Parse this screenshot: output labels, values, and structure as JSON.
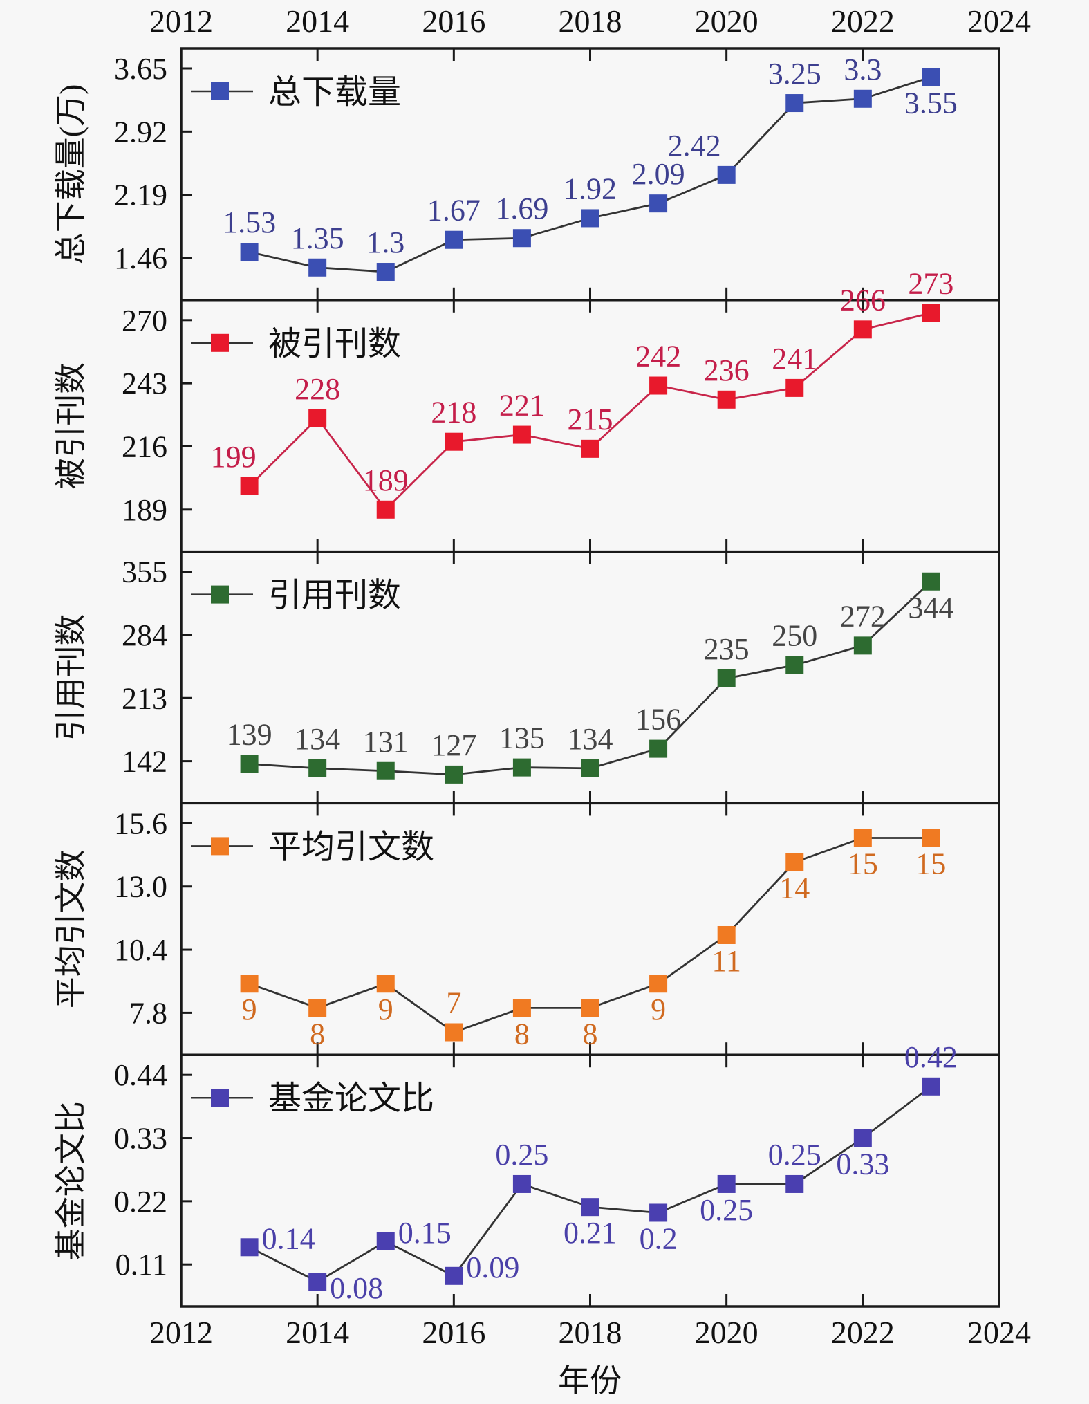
{
  "chart_data": {
    "type": "line",
    "layout": "stacked-panels",
    "x": [
      2013,
      2014,
      2015,
      2016,
      2017,
      2018,
      2019,
      2020,
      2021,
      2022,
      2023
    ],
    "x_ticks": [
      2012,
      2014,
      2016,
      2018,
      2020,
      2022,
      2024
    ],
    "xlim": [
      2012,
      2024
    ],
    "xlabel": "年份",
    "grid": false,
    "panels": [
      {
        "name": "总下载量",
        "ylabel": "总下载量(万)",
        "legend": "总下载量",
        "legend_position": "top-left",
        "color": "#3b4fb3",
        "label_color": "#3d3f8f",
        "y_ticks": [
          "1.46",
          "2.19",
          "2.92",
          "3.65"
        ],
        "ylim_ticks": [
          1.46,
          3.65
        ],
        "values": [
          1.53,
          1.35,
          1.3,
          1.67,
          1.69,
          1.92,
          2.09,
          2.42,
          3.25,
          3.3,
          3.55
        ],
        "labels": [
          "1.53",
          "1.35",
          "1.3",
          "1.67",
          "1.69",
          "1.92",
          "2.09",
          "2.42",
          "3.25",
          "3.3",
          "3.55"
        ],
        "label_pos": [
          "above",
          "above",
          "above",
          "above",
          "above",
          "above",
          "above",
          "above-left",
          "above",
          "above",
          "below"
        ]
      },
      {
        "name": "被引刊数",
        "ylabel": "被引刊数",
        "legend": "被引刊数",
        "legend_position": "top-left",
        "color": "#e8192c",
        "label_color": "#c41e4a",
        "y_ticks": [
          "189",
          "216",
          "243",
          "270"
        ],
        "ylim_ticks": [
          189,
          270
        ],
        "values": [
          199,
          228,
          189,
          218,
          221,
          215,
          242,
          236,
          241,
          266,
          273
        ],
        "labels": [
          "199",
          "228",
          "189",
          "218",
          "221",
          "215",
          "242",
          "236",
          "241",
          "266",
          "273"
        ],
        "label_pos": [
          "above-left",
          "above",
          "above",
          "above",
          "above",
          "above",
          "above",
          "above",
          "above",
          "above",
          "above"
        ]
      },
      {
        "name": "引用刊数",
        "ylabel": "引用刊数",
        "legend": "引用刊数",
        "legend_position": "top-left",
        "color": "#2d6b30",
        "label_color": "#444444",
        "y_ticks": [
          "142",
          "213",
          "284",
          "355"
        ],
        "ylim_ticks": [
          142,
          355
        ],
        "values": [
          139,
          134,
          131,
          127,
          135,
          134,
          156,
          235,
          250,
          272,
          344
        ],
        "labels": [
          "139",
          "134",
          "131",
          "127",
          "135",
          "134",
          "156",
          "235",
          "250",
          "272",
          "344"
        ],
        "label_pos": [
          "above",
          "above",
          "above",
          "above",
          "above",
          "above",
          "above",
          "above",
          "above",
          "above",
          "below"
        ]
      },
      {
        "name": "平均引文数",
        "ylabel": "平均引文数",
        "legend": "平均引文数",
        "legend_position": "top-left",
        "color": "#f07a22",
        "label_color": "#d06a20",
        "y_ticks": [
          "7.8",
          "10.4",
          "13.0",
          "15.6"
        ],
        "ylim_ticks": [
          7.8,
          15.6
        ],
        "values": [
          9,
          8,
          9,
          7,
          8,
          8,
          9,
          11,
          14,
          15,
          15
        ],
        "labels": [
          "9",
          "8",
          "9",
          "7",
          "8",
          "8",
          "9",
          "11",
          "14",
          "15",
          "15"
        ],
        "label_pos": [
          "below",
          "below",
          "below",
          "above",
          "below",
          "below",
          "below",
          "below",
          "below",
          "below",
          "below"
        ]
      },
      {
        "name": "基金论文比",
        "ylabel": "基金论文比",
        "legend": "基金论文比",
        "legend_position": "top-left",
        "color": "#4a3fb0",
        "label_color": "#4a40a8",
        "y_ticks": [
          "0.11",
          "0.22",
          "0.33",
          "0.44"
        ],
        "ylim_ticks": [
          0.11,
          0.44
        ],
        "values": [
          0.14,
          0.08,
          0.15,
          0.09,
          0.25,
          0.21,
          0.2,
          0.25,
          0.25,
          0.33,
          0.42
        ],
        "labels": [
          "0.14",
          "0.08",
          "0.15",
          "0.09",
          "0.25",
          "0.21",
          "0.2",
          "0.25",
          "0.25",
          "0.33",
          "0.42"
        ],
        "label_pos": [
          "right",
          "right-below",
          "right",
          "right",
          "above",
          "below",
          "below",
          "below",
          "above",
          "below",
          "above"
        ]
      }
    ]
  }
}
